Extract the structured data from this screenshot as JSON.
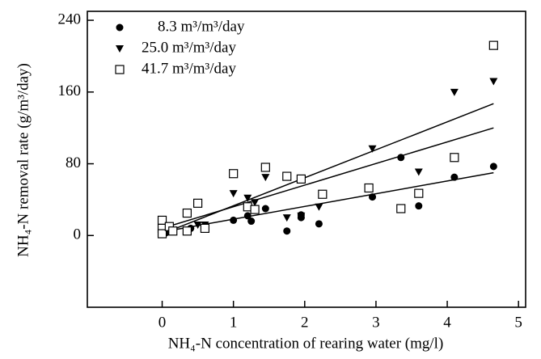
{
  "chart_data": {
    "type": "scatter",
    "xlabel": "NH₄-N concentration of rearing water (mg/l)",
    "ylabel": "NH₄-N removal rate (g/m³/day)",
    "xlim": [
      -1.05,
      5.1
    ],
    "ylim": [
      -80,
      250
    ],
    "xticks": [
      0,
      1,
      2,
      3,
      4,
      5
    ],
    "yticks": [
      0,
      80,
      160,
      240
    ],
    "legend": "upper left",
    "series": [
      {
        "name": "8.3 m³/m³/day",
        "color": "#000000",
        "marker": "circle",
        "x": [
          0,
          0,
          0.05,
          0.4,
          1,
          1.2,
          1.25,
          1.45,
          1.75,
          1.95,
          1.95,
          2.2,
          2.95,
          3.35,
          3.6,
          4.1,
          4.65
        ],
        "values": [
          2,
          5,
          3,
          8,
          17,
          22,
          16,
          30,
          5,
          20,
          23,
          13,
          43,
          87,
          33,
          65,
          77
        ],
        "trend_x": [
          0,
          4.65
        ],
        "trend_y": [
          4,
          70
        ]
      },
      {
        "name": "25.0 m³/m³/day",
        "color": "#000000",
        "marker": "triangle",
        "x": [
          0,
          0.1,
          0.5,
          0.6,
          1,
          1.2,
          1.3,
          1.45,
          1.75,
          1.95,
          2.2,
          2.95,
          3.6,
          4.1,
          4.65
        ],
        "values": [
          5,
          8,
          12,
          12,
          47,
          42,
          37,
          65,
          20,
          22,
          32,
          97,
          71,
          160,
          172
        ],
        "trend_x": [
          0,
          4.65
        ],
        "trend_y": [
          2,
          147
        ]
      },
      {
        "name": "41.7 m³/m³/day",
        "color": "#000000",
        "marker": "square",
        "x": [
          0,
          0,
          0,
          0.1,
          0.15,
          0.35,
          0.35,
          0.5,
          0.6,
          1,
          1.2,
          1.3,
          1.45,
          1.75,
          1.95,
          2.25,
          2.9,
          3.35,
          3.6,
          4.1,
          4.65
        ],
        "values": [
          17,
          8,
          2,
          10,
          5,
          25,
          5,
          36,
          8,
          69,
          32,
          29,
          76,
          66,
          63,
          46,
          53,
          30,
          47,
          87,
          212
        ],
        "trend_x": [
          0,
          4.65
        ],
        "trend_y": [
          8,
          120
        ]
      }
    ]
  }
}
